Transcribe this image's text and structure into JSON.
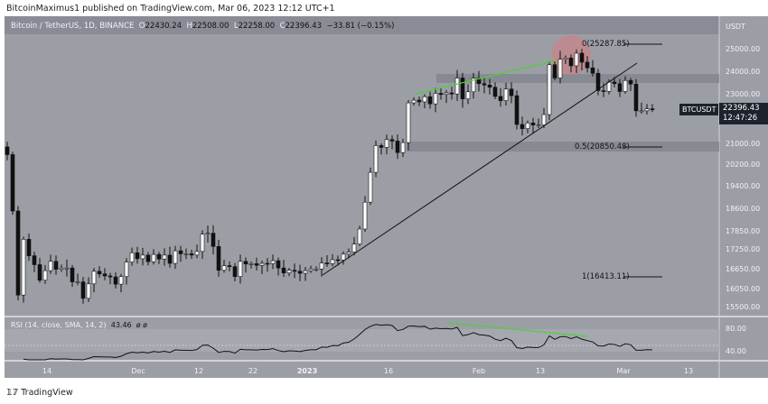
{
  "publisher": "BitcoinMaximus1 published on TradingView.com, Mar 06, 2023 12:12 UTC+1",
  "legend": {
    "title": "Bitcoin / TetherUS, 1D, BINANCE",
    "o_label": "O",
    "o": "22430.24",
    "h_label": "H",
    "h": "22508.00",
    "l_label": "L",
    "l": "22258.00",
    "c_label": "C",
    "c": "22396.43",
    "change": "−33.81 (−0.15%)"
  },
  "price_axis": {
    "currency": "USDT",
    "ticks": [
      "25000.00",
      "24000.00",
      "23000.00",
      "21000.00",
      "20200.00",
      "19400.00",
      "18600.00",
      "17850.00",
      "17250.00",
      "16650.00",
      "16050.00",
      "15500.00"
    ]
  },
  "symbol_tag": "BTCUSDT",
  "price_tag": "22396.43",
  "countdown": "12:47:26",
  "fib": {
    "level0": "0(25287.85)",
    "level05": "0.5(20850.48)",
    "level1": "1(16413.11)"
  },
  "rsi": {
    "label": "RSI (14, close, SMA, 14, 2)",
    "value": "43.46",
    "extra": "ø ø",
    "ticks": [
      "80.00",
      "40.00"
    ]
  },
  "time_axis": [
    "14",
    "Dec",
    "12",
    "22",
    "2023",
    "16",
    "Feb",
    "13",
    "Mar",
    "13"
  ],
  "footer": "TradingView",
  "colors": {
    "up": "#ffffff",
    "down": "#111111",
    "bg": "#9c9ea6",
    "green": "#4cd137",
    "circle": "#d97b7b"
  },
  "chart_data": {
    "type": "candlestick",
    "start": "2022-11-07",
    "end": "2023-03-06",
    "closes": [
      20600,
      18540,
      15880,
      17600,
      17070,
      16800,
      16330,
      16620,
      16900,
      16660,
      16700,
      16700,
      16280,
      16280,
      15780,
      16220,
      16600,
      16520,
      16460,
      16430,
      16210,
      16440,
      16880,
      17160,
      16980,
      17090,
      16890,
      17110,
      16970,
      17090,
      16840,
      17220,
      17130,
      17130,
      17090,
      17200,
      17770,
      17800,
      17360,
      16630,
      16770,
      16740,
      16440,
      16900,
      16820,
      16830,
      16780,
      16840,
      16830,
      16920,
      16700,
      16550,
      16630,
      16600,
      16540,
      16620,
      16670,
      16670,
      16850,
      16830,
      16950,
      16940,
      17120,
      17180,
      17440,
      17940,
      18850,
      19930,
      20950,
      20880,
      21190,
      21130,
      20680,
      21070,
      22670,
      22780,
      22710,
      22920,
      22630,
      23060,
      23010,
      23080,
      23030,
      23740,
      22830,
      23130,
      23730,
      23490,
      23430,
      23330,
      22930,
      22760,
      23250,
      22960,
      21800,
      21630,
      21860,
      21780,
      21780,
      22200,
      24330,
      23740,
      24570,
      24630,
      24280,
      24840,
      24440,
      24190,
      23950,
      23180,
      23150,
      23560,
      23490,
      23140,
      23630,
      23470,
      22350,
      22350,
      22430,
      22396
    ]
  }
}
